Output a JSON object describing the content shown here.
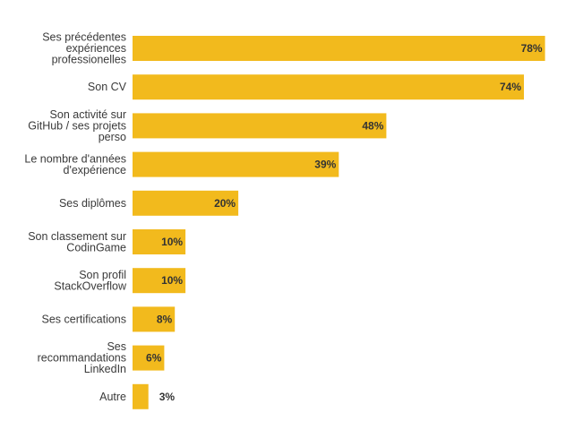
{
  "chart_data": {
    "type": "bar",
    "orientation": "horizontal",
    "title": "",
    "xlabel": "",
    "ylabel": "",
    "xlim": [
      0,
      80
    ],
    "grid": false,
    "bar_color": "#F2BA1D",
    "unit": "%",
    "categories": [
      [
        "Ses précédentes",
        "expériences",
        "professionelles"
      ],
      [
        "Son CV"
      ],
      [
        "Son activité sur",
        "GitHub / ses projets",
        "perso"
      ],
      [
        "Le nombre d'années",
        "d'expérience"
      ],
      [
        "Ses diplômes"
      ],
      [
        "Son classement sur",
        "CodinGame"
      ],
      [
        "Son profil",
        "StackOverflow"
      ],
      [
        "Ses certifications"
      ],
      [
        "Ses",
        "recommandations",
        "LinkedIn"
      ],
      [
        "Autre"
      ]
    ],
    "values": [
      78,
      74,
      48,
      39,
      20,
      10,
      10,
      8,
      6,
      3
    ],
    "value_labels": [
      "78%",
      "74%",
      "48%",
      "39%",
      "20%",
      "10%",
      "10%",
      "8%",
      "6%",
      "3%"
    ]
  }
}
